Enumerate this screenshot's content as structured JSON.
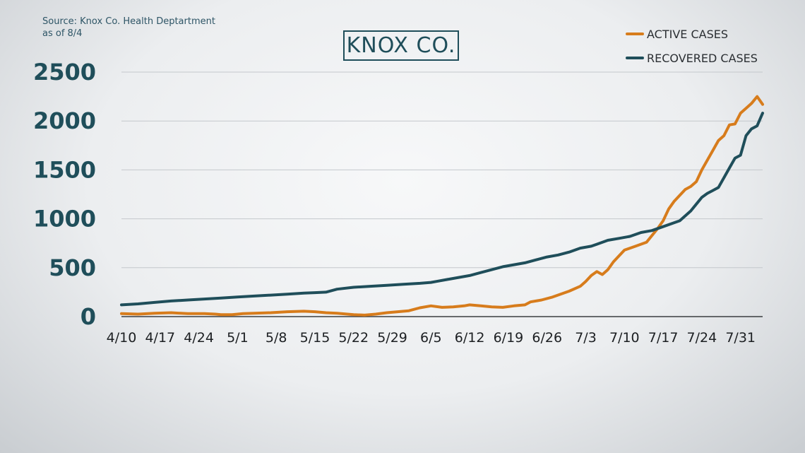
{
  "source": {
    "line1": "Source: Knox Co. Health Deptartment",
    "line2": "as of 8/4"
  },
  "chart_data": {
    "type": "line",
    "title": "KNOX CO.",
    "xlabel": "",
    "ylabel": "",
    "ylim": [
      0,
      2500
    ],
    "yticks": [
      0,
      500,
      1000,
      1500,
      2000,
      2500
    ],
    "grid": true,
    "legend_position": "top-right",
    "x_tick_labels": [
      "4/10",
      "4/17",
      "4/24",
      "5/1",
      "5/8",
      "5/15",
      "5/22",
      "5/29",
      "6/5",
      "6/12",
      "6/19",
      "6/26",
      "7/3",
      "7/10",
      "7/17",
      "7/24",
      "7/31"
    ],
    "x_tick_days": [
      0,
      7,
      14,
      21,
      28,
      35,
      42,
      49,
      56,
      63,
      70,
      77,
      84,
      91,
      98,
      105,
      112
    ],
    "x_max_day": 116,
    "series": [
      {
        "name": "ACTIVE CASES",
        "color": "#d77c1c",
        "points": [
          [
            0,
            30
          ],
          [
            3,
            25
          ],
          [
            6,
            35
          ],
          [
            9,
            40
          ],
          [
            12,
            30
          ],
          [
            15,
            30
          ],
          [
            17,
            25
          ],
          [
            18,
            20
          ],
          [
            20,
            20
          ],
          [
            22,
            30
          ],
          [
            24,
            35
          ],
          [
            27,
            40
          ],
          [
            30,
            50
          ],
          [
            33,
            55
          ],
          [
            35,
            50
          ],
          [
            37,
            40
          ],
          [
            39,
            35
          ],
          [
            42,
            20
          ],
          [
            44,
            15
          ],
          [
            46,
            25
          ],
          [
            48,
            40
          ],
          [
            50,
            50
          ],
          [
            52,
            60
          ],
          [
            54,
            90
          ],
          [
            56,
            110
          ],
          [
            58,
            95
          ],
          [
            60,
            100
          ],
          [
            62,
            110
          ],
          [
            63,
            120
          ],
          [
            65,
            110
          ],
          [
            67,
            100
          ],
          [
            69,
            95
          ],
          [
            71,
            110
          ],
          [
            73,
            120
          ],
          [
            74,
            150
          ],
          [
            76,
            170
          ],
          [
            78,
            200
          ],
          [
            80,
            240
          ],
          [
            81,
            260
          ],
          [
            83,
            310
          ],
          [
            84,
            360
          ],
          [
            85,
            420
          ],
          [
            86,
            460
          ],
          [
            87,
            430
          ],
          [
            88,
            480
          ],
          [
            89,
            560
          ],
          [
            91,
            680
          ],
          [
            93,
            720
          ],
          [
            95,
            760
          ],
          [
            97,
            900
          ],
          [
            98,
            980
          ],
          [
            99,
            1100
          ],
          [
            100,
            1180
          ],
          [
            102,
            1300
          ],
          [
            103,
            1330
          ],
          [
            104,
            1380
          ],
          [
            105,
            1500
          ],
          [
            106,
            1600
          ],
          [
            107,
            1700
          ],
          [
            108,
            1800
          ],
          [
            109,
            1850
          ],
          [
            110,
            1960
          ],
          [
            111,
            1970
          ],
          [
            112,
            2080
          ],
          [
            113,
            2130
          ],
          [
            114,
            2180
          ],
          [
            115,
            2250
          ],
          [
            116,
            2170
          ]
        ]
      },
      {
        "name": "RECOVERED CASES",
        "color": "#1f4e5a",
        "points": [
          [
            0,
            120
          ],
          [
            3,
            130
          ],
          [
            6,
            145
          ],
          [
            9,
            160
          ],
          [
            12,
            170
          ],
          [
            15,
            180
          ],
          [
            18,
            190
          ],
          [
            21,
            200
          ],
          [
            24,
            210
          ],
          [
            27,
            220
          ],
          [
            30,
            230
          ],
          [
            33,
            240
          ],
          [
            35,
            245
          ],
          [
            37,
            250
          ],
          [
            39,
            280
          ],
          [
            42,
            300
          ],
          [
            45,
            310
          ],
          [
            48,
            320
          ],
          [
            51,
            330
          ],
          [
            54,
            340
          ],
          [
            56,
            350
          ],
          [
            57,
            360
          ],
          [
            59,
            380
          ],
          [
            61,
            400
          ],
          [
            63,
            420
          ],
          [
            65,
            450
          ],
          [
            67,
            480
          ],
          [
            69,
            510
          ],
          [
            71,
            530
          ],
          [
            73,
            550
          ],
          [
            75,
            580
          ],
          [
            77,
            610
          ],
          [
            79,
            630
          ],
          [
            81,
            660
          ],
          [
            83,
            700
          ],
          [
            85,
            720
          ],
          [
            86,
            740
          ],
          [
            88,
            780
          ],
          [
            90,
            800
          ],
          [
            92,
            820
          ],
          [
            94,
            860
          ],
          [
            96,
            880
          ],
          [
            98,
            920
          ],
          [
            100,
            960
          ],
          [
            101,
            980
          ],
          [
            103,
            1080
          ],
          [
            104,
            1150
          ],
          [
            105,
            1220
          ],
          [
            106,
            1260
          ],
          [
            107,
            1290
          ],
          [
            108,
            1320
          ],
          [
            109,
            1420
          ],
          [
            110,
            1520
          ],
          [
            111,
            1620
          ],
          [
            112,
            1650
          ],
          [
            113,
            1850
          ],
          [
            114,
            1920
          ],
          [
            115,
            1950
          ],
          [
            116,
            2080
          ]
        ]
      }
    ]
  }
}
